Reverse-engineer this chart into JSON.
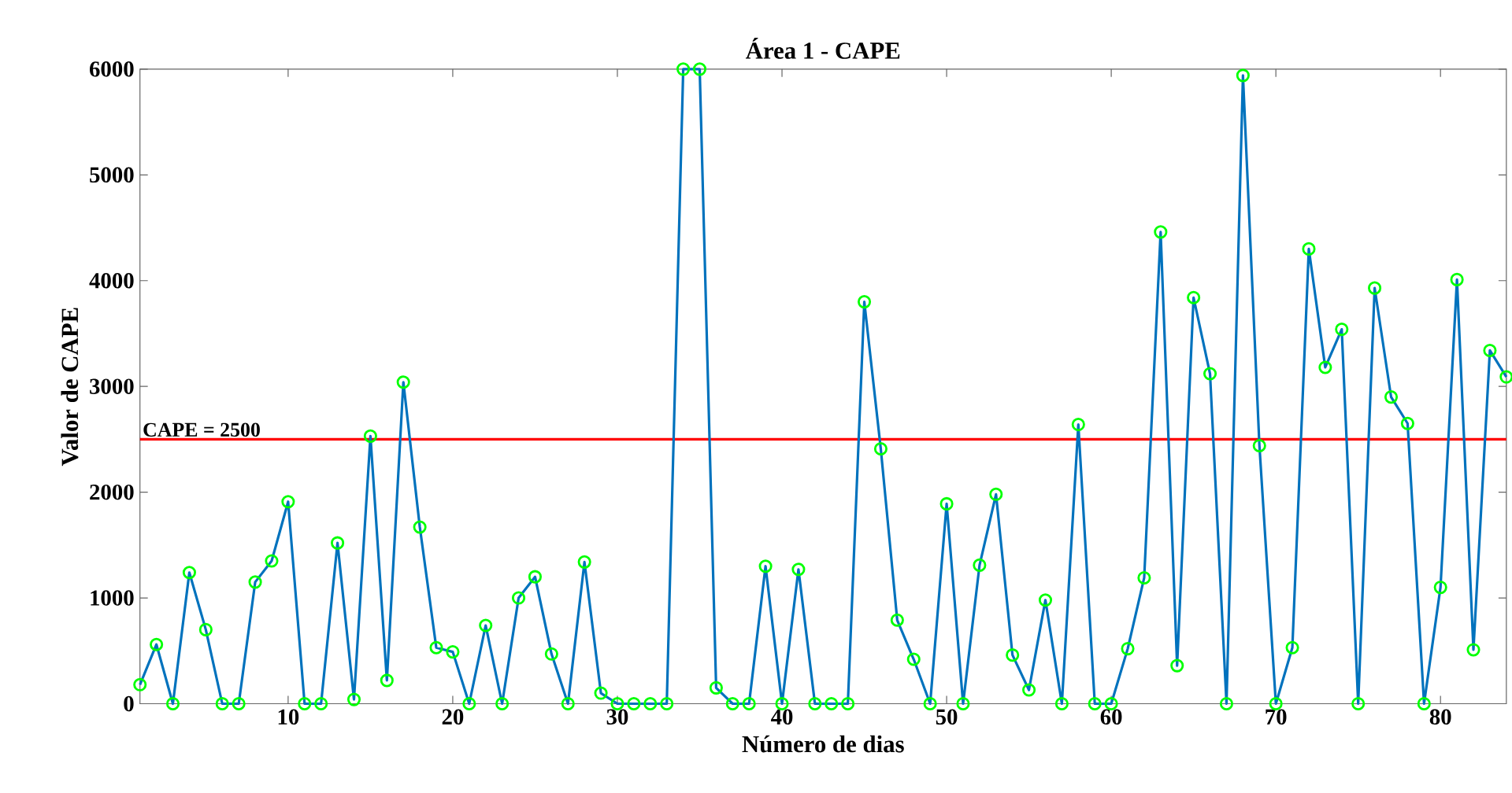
{
  "chart_data": {
    "type": "line",
    "title": "Área 1 - CAPE",
    "xlabel": "Número de dias",
    "ylabel": "Valor de CAPE",
    "x": [
      1,
      2,
      3,
      4,
      5,
      6,
      7,
      8,
      9,
      10,
      11,
      12,
      13,
      14,
      15,
      16,
      17,
      18,
      19,
      20,
      21,
      22,
      23,
      24,
      25,
      26,
      27,
      28,
      29,
      30,
      31,
      32,
      33,
      34,
      35,
      36,
      37,
      38,
      39,
      40,
      41,
      42,
      43,
      44,
      45,
      46,
      47,
      48,
      49,
      50,
      51,
      52,
      53,
      54,
      55,
      56,
      57,
      58,
      59,
      60,
      61,
      62,
      63,
      64,
      65,
      66,
      67,
      68,
      69,
      70,
      71,
      72,
      73,
      74,
      75,
      76,
      77,
      78,
      79,
      80,
      81,
      82,
      83,
      84
    ],
    "series": [
      {
        "color": "#0072bd",
        "values": [
          180,
          560,
          0,
          1240,
          700,
          0,
          0,
          1150,
          1350,
          1910,
          0,
          0,
          1520,
          40,
          2530,
          220,
          3040,
          1670,
          530,
          490,
          0,
          740,
          0,
          1000,
          1200,
          470,
          0,
          1340,
          100,
          0,
          0,
          0,
          0,
          6000,
          6000,
          150,
          0,
          0,
          1300,
          0,
          1270,
          0,
          0,
          0,
          3800,
          2410,
          790,
          420,
          0,
          1890,
          0,
          1310,
          1980,
          460,
          130,
          980,
          0,
          2640,
          0,
          0,
          520,
          1190,
          4460,
          360,
          3840,
          3120,
          0,
          5940,
          2440,
          0,
          530,
          4300,
          3180,
          3540,
          0,
          3930,
          2900,
          2650,
          0,
          1100,
          4010,
          510,
          3340,
          3090
        ]
      }
    ],
    "xlim": [
      1,
      84
    ],
    "ylim": [
      0,
      6000
    ],
    "xticks": [
      10,
      20,
      30,
      40,
      50,
      60,
      70,
      80
    ],
    "yticks": [
      0,
      1000,
      2000,
      3000,
      4000,
      5000,
      6000
    ],
    "grid": false,
    "marker": "circle",
    "line_style": "solid",
    "ref_lines": [
      {
        "axis": "y",
        "value": 2500,
        "label": "CAPE = 2500",
        "color": "#ff0000"
      }
    ]
  }
}
